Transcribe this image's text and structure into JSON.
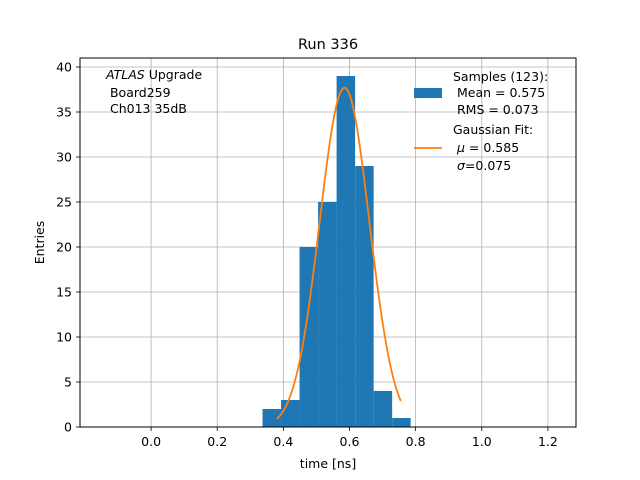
{
  "chart_data": {
    "type": "bar",
    "title": "Run 336",
    "xlabel": "time [ns]",
    "ylabel": "Entries",
    "xlim": [
      -0.215,
      1.285
    ],
    "ylim": [
      0,
      41
    ],
    "xticks": [
      0.0,
      0.2,
      0.4,
      0.6,
      0.8,
      1.0,
      1.2
    ],
    "xtick_labels": [
      "0.0",
      "0.2",
      "0.4",
      "0.6",
      "0.8",
      "1.0",
      "1.2"
    ],
    "yticks": [
      0,
      5,
      10,
      15,
      20,
      25,
      30,
      35,
      40
    ],
    "ytick_labels": [
      "0",
      "5",
      "10",
      "15",
      "20",
      "25",
      "30",
      "35",
      "40"
    ],
    "grid": true,
    "legend_position": "top-right",
    "annotation": {
      "italic": "ATLAS",
      "line1_rest": " Upgrade",
      "line2": " Board259",
      "line3": " Ch013 35dB"
    },
    "histogram": {
      "name_lines": [
        "Samples (123):",
        " Mean = 0.575",
        " RMS = 0.073"
      ],
      "color": "#1f77b4",
      "bin_edges": [
        0.337,
        0.393,
        0.449,
        0.505,
        0.561,
        0.617,
        0.673,
        0.729,
        0.785
      ],
      "counts": [
        2,
        3,
        20,
        25,
        39,
        29,
        4,
        1
      ]
    },
    "fit": {
      "name_lines": [
        "Gaussian Fit:"
      ],
      "mu_label": "μ",
      "mu_text": " = 0.585",
      "sigma_label": "σ",
      "sigma_text": "=0.075",
      "color": "#ff7f0e",
      "mu": 0.585,
      "sigma": 0.075,
      "amplitude": 37.7,
      "x_range": [
        0.38,
        0.755
      ]
    }
  }
}
